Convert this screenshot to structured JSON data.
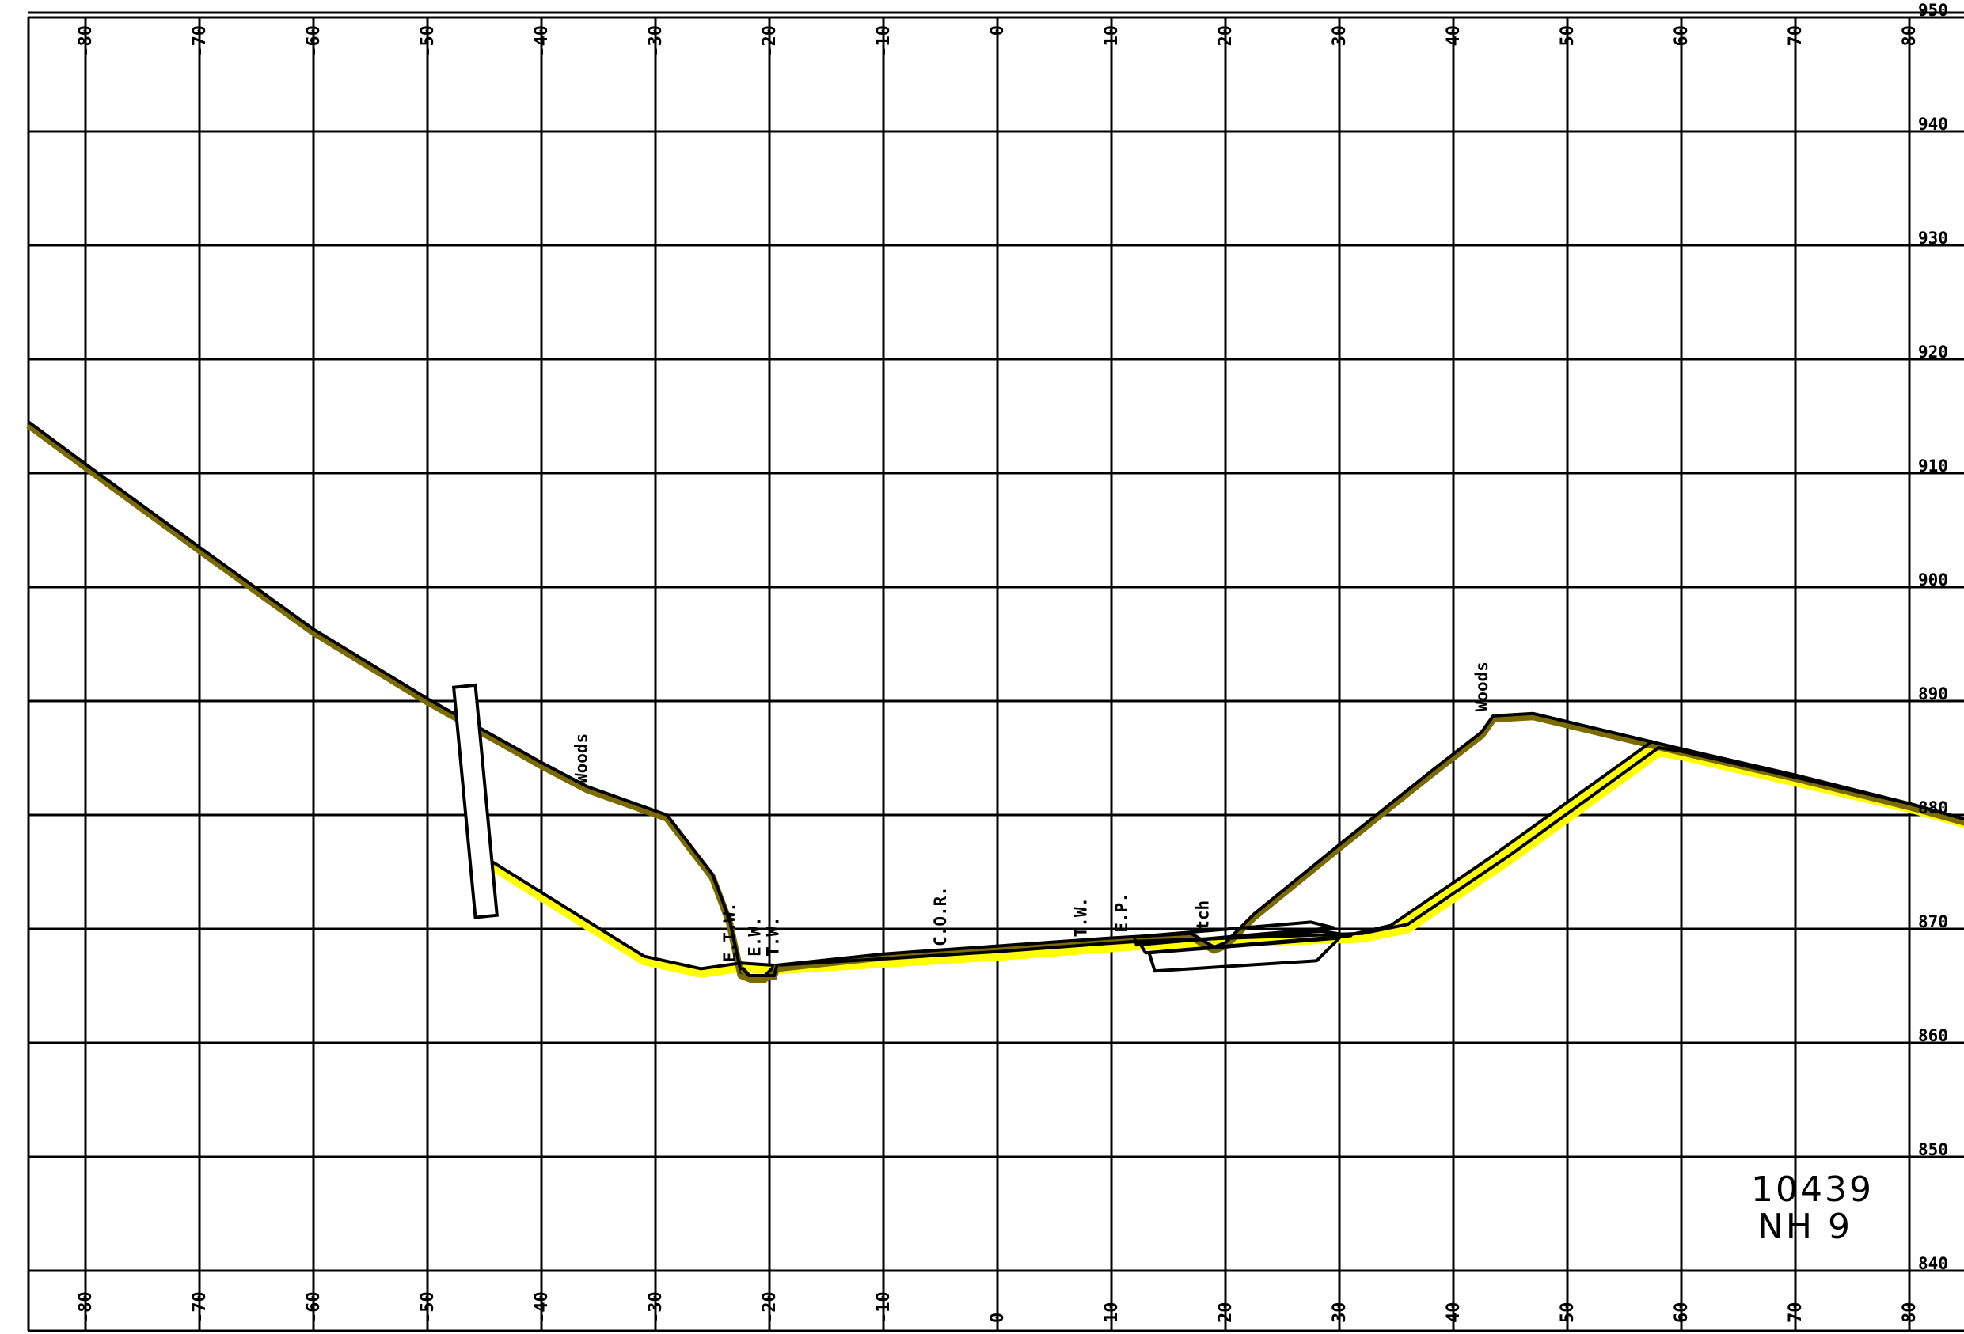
{
  "colors": {
    "background": "#ffffff",
    "grid": "#000000",
    "existing_ground_shadow": "#7a6a00",
    "proposed_highlight": "#ffff00",
    "line": "#000000"
  },
  "x_axis": {
    "ticks": [
      -80,
      -70,
      -60,
      -50,
      -40,
      -30,
      -20,
      -10,
      0,
      10,
      20,
      30,
      40,
      50,
      60,
      70,
      80
    ],
    "labels": [
      "-80",
      "-70",
      "-60",
      "-50",
      "-40",
      "-30",
      "-20",
      "-10",
      "0",
      "10",
      "20",
      "30",
      "40",
      "50",
      "60",
      "70",
      "80"
    ]
  },
  "y_axis": {
    "ticks": [
      950,
      940,
      930,
      920,
      910,
      900,
      890,
      880,
      870,
      860,
      850,
      840
    ],
    "labels": [
      "950",
      "940",
      "930",
      "920",
      "910",
      "900",
      "890",
      "880",
      "870",
      "860",
      "850",
      "840"
    ]
  },
  "annotations": [
    {
      "text": "Woods",
      "offset": -36,
      "elev": 882.5
    },
    {
      "text": "Woods",
      "offset": 43,
      "elev": 888.8
    },
    {
      "text": "E.T.W.",
      "offset": -23,
      "elev": 866.8
    },
    {
      "text": "E.W.",
      "offset": -20.8,
      "elev": 867.3
    },
    {
      "text": "T.W.",
      "offset": -19.2,
      "elev": 867.3
    },
    {
      "text": "C.O.R.",
      "offset": -4.5,
      "elev": 868.2
    },
    {
      "text": "T.W.",
      "offset": 7.8,
      "elev": 869.0
    },
    {
      "text": "E.P.",
      "offset": 11.4,
      "elev": 869.4
    },
    {
      "text": "tch",
      "offset": 18.5,
      "elev": 869.6
    }
  ],
  "sheet_id": {
    "line1": "10439",
    "line2": "NH 9"
  },
  "profiles": {
    "existing_ground": [
      [
        -85,
        914.5
      ],
      [
        -80,
        910.8
      ],
      [
        -70,
        903.5
      ],
      [
        -60,
        896.3
      ],
      [
        -50,
        890.2
      ],
      [
        -40,
        884.6
      ],
      [
        -36,
        882.5
      ],
      [
        -29,
        880
      ],
      [
        -25,
        874.8
      ],
      [
        -23.5,
        870.8
      ],
      [
        -22.5,
        866.2
      ],
      [
        -21.5,
        865.8
      ],
      [
        -20.5,
        865.8
      ],
      [
        -19.5,
        866.8
      ],
      [
        -10,
        867.8
      ],
      [
        0,
        868.5
      ],
      [
        10,
        869.2
      ],
      [
        17,
        869.6
      ],
      [
        19,
        868.4
      ],
      [
        20,
        868.8
      ],
      [
        22.5,
        871.3
      ],
      [
        30,
        877.4
      ],
      [
        38,
        883.8
      ],
      [
        42.5,
        887.3
      ],
      [
        43.5,
        888.7
      ],
      [
        47,
        888.9
      ],
      [
        60,
        885.8
      ],
      [
        70,
        883.5
      ],
      [
        80,
        881.0
      ],
      [
        85,
        879.6
      ]
    ],
    "proposed": [
      [
        -45.3,
        876.5
      ],
      [
        -31,
        867.6
      ],
      [
        -26,
        866.5
      ],
      [
        -22.5,
        867.0
      ],
      [
        -19.5,
        866.8
      ],
      [
        0,
        868.0
      ],
      [
        12,
        868.9
      ],
      [
        32,
        869.6
      ],
      [
        36,
        870.4
      ],
      [
        45,
        876.5
      ],
      [
        58,
        885.9
      ],
      [
        60,
        885.6
      ],
      [
        80,
        881.0
      ],
      [
        85,
        879.6
      ]
    ],
    "fill_slope_right": [
      [
        31,
        869.5
      ],
      [
        34.5,
        870.3
      ],
      [
        43,
        876.1
      ],
      [
        57.5,
        886.5
      ]
    ],
    "ditch_box": [
      [
        -22.4,
        866.6
      ],
      [
        -21.8,
        865.9
      ],
      [
        -19.6,
        865.9
      ],
      [
        -19.3,
        866.9
      ]
    ],
    "pavement_layers": [
      [
        [
          12,
          869.3
        ],
        [
          27.5,
          870.6
        ],
        [
          29.5,
          870.1
        ],
        [
          12.2,
          868.6
        ]
      ],
      [
        [
          12.5,
          868.7
        ],
        [
          28.5,
          869.8
        ],
        [
          31,
          869.4
        ],
        [
          13,
          867.9
        ]
      ],
      [
        [
          13.3,
          867.9
        ],
        [
          30,
          869.2
        ],
        [
          28,
          867.2
        ],
        [
          13.8,
          866.3
        ]
      ]
    ],
    "wall_left": [
      [
        -47.7,
        891.2
      ],
      [
        -45.8,
        891.4
      ],
      [
        -43.9,
        871.2
      ],
      [
        -45.8,
        871.0
      ]
    ]
  }
}
